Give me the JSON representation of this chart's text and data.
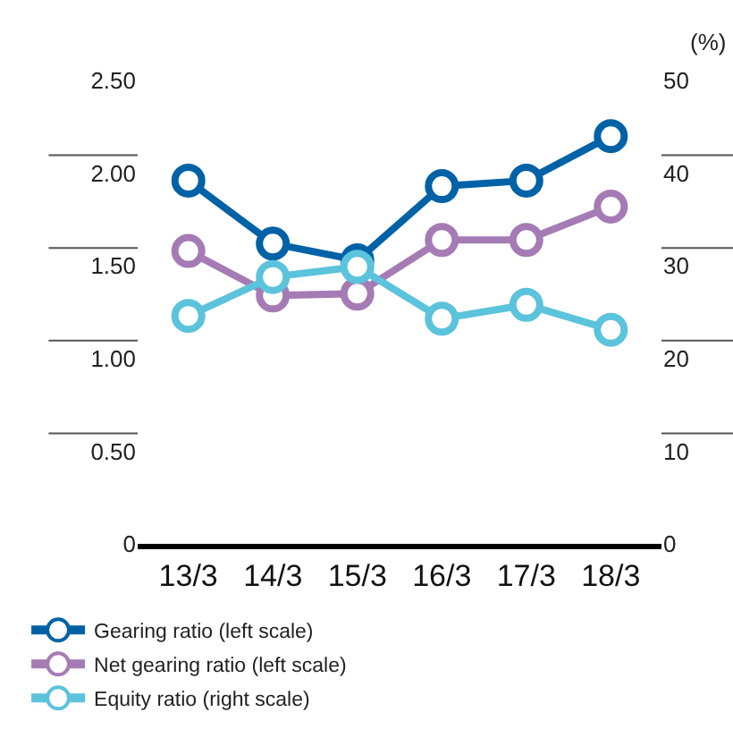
{
  "chart_data": {
    "type": "line",
    "y2label": "(%)",
    "categories": [
      "13/3",
      "14/3",
      "15/3",
      "16/3",
      "17/3",
      "18/3"
    ],
    "series": [
      {
        "name": "Gearing ratio (left scale)",
        "color": "#0062a6",
        "values": [
          1.96,
          1.62,
          1.53,
          1.93,
          1.96,
          2.2
        ]
      },
      {
        "name": "Net gearing ratio (left scale)",
        "color": "#a57bb5",
        "values": [
          1.58,
          1.34,
          1.35,
          1.64,
          1.64,
          1.82
        ]
      },
      {
        "name": "Equity ratio (right scale)",
        "color": "#5bc3db",
        "axis": "y2",
        "values": [
          24.6,
          28.8,
          29.9,
          24.3,
          25.8,
          23.1
        ]
      }
    ],
    "ylim": [
      0,
      2.5
    ],
    "yticks": [
      {
        "value": 0,
        "label": "0"
      },
      {
        "value": 0.5,
        "label": "0.50"
      },
      {
        "value": 1,
        "label": "1.00"
      },
      {
        "value": 1.5,
        "label": "1.50"
      },
      {
        "value": 2,
        "label": "2.00"
      },
      {
        "value": 2.5,
        "label": "2.50"
      }
    ],
    "y2lim": [
      0,
      50
    ],
    "y2ticks": [
      0,
      10,
      20,
      30,
      40,
      50
    ],
    "grid": false,
    "legend": "bottom",
    "marker": "circle",
    "line_style": "solid"
  }
}
